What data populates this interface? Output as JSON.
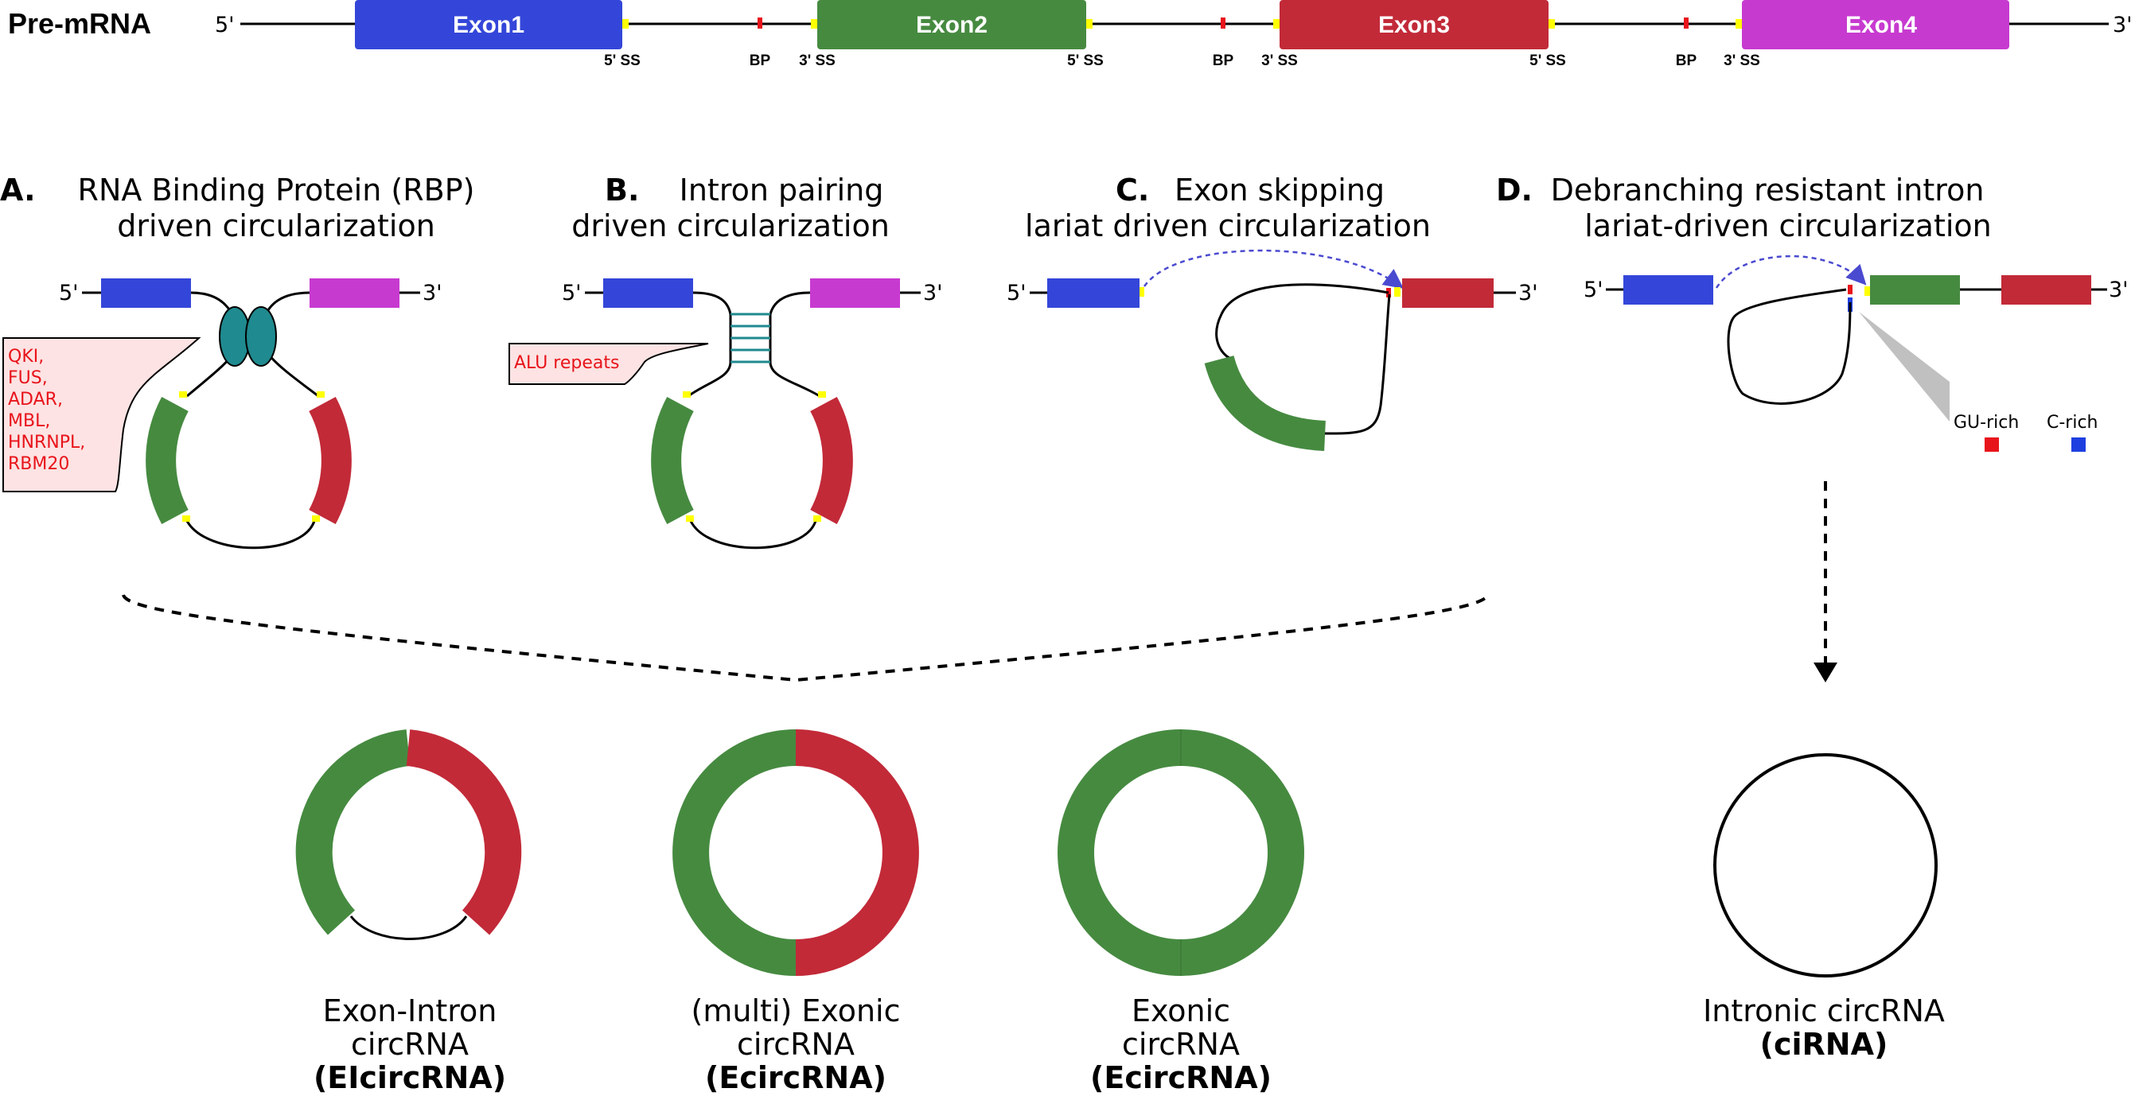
{
  "colors": {
    "exon1": "#3446d9",
    "exon2": "#468a40",
    "exon3": "#c22a38",
    "exon4": "#c73ad0",
    "splice_site": "#ffff00",
    "branch_point": "#e8141b",
    "rbp": "#1f8a8f",
    "callout_fill": "#fde3e3",
    "gu_rich": "#e8141b",
    "c_rich": "#1d3fe0"
  },
  "premrna": {
    "title": "Pre-mRNA",
    "five_prime": "5'",
    "three_prime": "3'",
    "exons": [
      "Exon1",
      "Exon2",
      "Exon3",
      "Exon4"
    ],
    "ss5": "5' SS",
    "ss3": "3' SS",
    "bp": "BP"
  },
  "panel_a": {
    "letter": "A.",
    "line1": "RNA Binding Protein (RBP)",
    "line2": "driven circularization",
    "five_prime": "5'",
    "three_prime": "3'",
    "rbps": [
      "QKI,",
      "FUS,",
      "ADAR,",
      "MBL,",
      "HNRNPL,",
      "RBM20"
    ]
  },
  "panel_b": {
    "letter": "B.",
    "line1": "Intron pairing",
    "line2": "driven circularization",
    "five_prime": "5'",
    "three_prime": "3'",
    "callout": "ALU repeats"
  },
  "panel_c": {
    "letter": "C.",
    "line1": "Exon skipping",
    "line2": "lariat driven circularization",
    "five_prime": "5'",
    "three_prime": "3'"
  },
  "panel_d": {
    "letter": "D.",
    "line1": "Debranching resistant intron",
    "line2": "lariat-driven circularization",
    "five_prime": "5'",
    "three_prime": "3'",
    "legend_gu": "GU-rich",
    "legend_c": "C-rich"
  },
  "products": [
    {
      "line1": "Exon-Intron",
      "line2": "circRNA",
      "abbr": "(EIcircRNA)"
    },
    {
      "line1": "(multi) Exonic",
      "line2": "circRNA",
      "abbr": "(EcircRNA)"
    },
    {
      "line1": "Exonic",
      "line2": "circRNA",
      "abbr": "(EcircRNA)"
    },
    {
      "line1": "Intronic circRNA",
      "line2": "",
      "abbr": "(ciRNA)"
    }
  ]
}
